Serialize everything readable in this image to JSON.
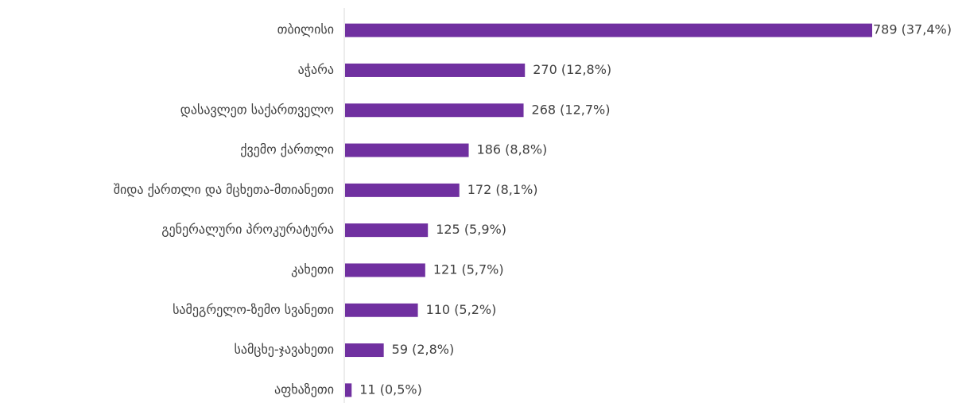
{
  "chart_data": {
    "type": "bar",
    "orientation": "horizontal",
    "categories": [
      "თბილისი",
      "აჭარა",
      "დასავლეთ საქართველო",
      "ქვემო ქართლი",
      "შიდა ქართლი და მცხეთა-მთიანეთი",
      "გენერალური პროკურატურა",
      "კახეთი",
      "სამეგრელო-ზემო სვანეთი",
      "სამცხე-ჯავახეთი",
      "აფხაზეთი"
    ],
    "values": [
      789,
      270,
      268,
      186,
      172,
      125,
      121,
      110,
      59,
      11
    ],
    "value_labels": [
      "789 (37,4%)",
      "270 (12,8%)",
      "268 (12,7%)",
      "186 (8,8%)",
      "172 (8,1%)",
      "125 (5,9%)",
      "121 (5,7%)",
      "110 (5,2%)",
      "59 (2,8%)",
      "11 (0,5%)"
    ],
    "color": "#7030a0"
  }
}
